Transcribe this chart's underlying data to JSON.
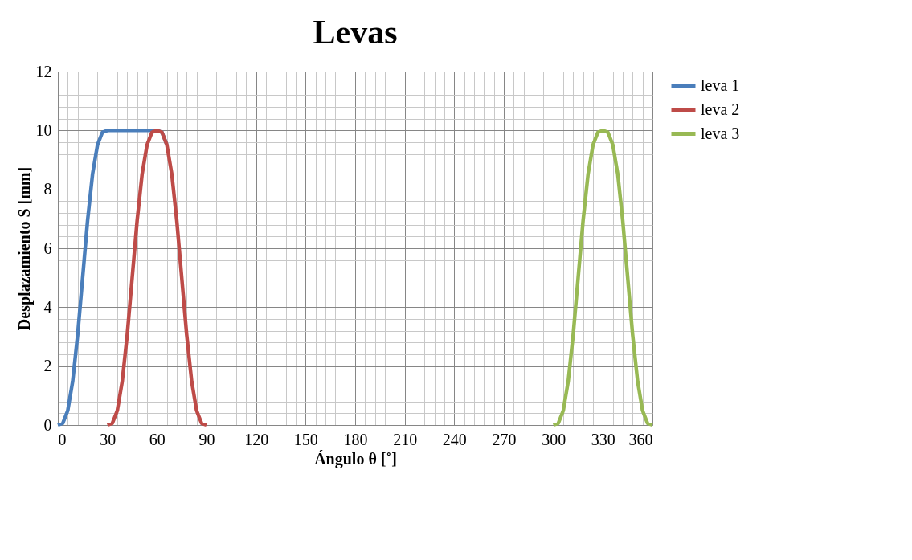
{
  "chart_data": {
    "type": "line",
    "title": "Levas",
    "xlabel": "Ángulo θ  [˚]",
    "ylabel": "Desplazamiento S [mm]",
    "xlim": [
      0,
      360
    ],
    "xticks": [
      0,
      30,
      60,
      90,
      120,
      150,
      180,
      210,
      240,
      270,
      300,
      330,
      360
    ],
    "ylim": [
      0,
      12
    ],
    "yticks": [
      0,
      2,
      4,
      6,
      8,
      10,
      12
    ],
    "grid": true,
    "legend": "right",
    "marker": "none",
    "line_style": "solid",
    "series": [
      {
        "name": "leva 1",
        "color": "#4a7ebb",
        "x": [
          0,
          3,
          6,
          9,
          12,
          15,
          18,
          21,
          24,
          27,
          30,
          60,
          63,
          66
        ],
        "values": [
          0,
          0.06,
          0.49,
          1.49,
          3.06,
          5,
          6.94,
          8.51,
          9.51,
          9.94,
          10,
          10,
          9.94,
          9.51
        ]
      },
      {
        "name": "leva 2",
        "color": "#be4b48",
        "x": [
          30,
          33,
          36,
          39,
          42,
          45,
          48,
          51,
          54,
          57,
          60,
          63,
          66,
          69,
          72,
          75,
          78,
          81,
          84,
          87,
          90
        ],
        "values": [
          0,
          0.06,
          0.49,
          1.49,
          3.06,
          5,
          6.94,
          8.51,
          9.51,
          9.94,
          10,
          9.94,
          9.51,
          8.51,
          6.94,
          5,
          3.06,
          1.49,
          0.49,
          0.06,
          0
        ]
      },
      {
        "name": "leva 3",
        "color": "#98b954",
        "x": [
          300,
          303,
          306,
          309,
          312,
          315,
          318,
          321,
          324,
          327,
          330,
          333,
          336,
          339,
          342,
          345,
          348,
          351,
          354,
          357,
          360
        ],
        "values": [
          0,
          0.06,
          0.49,
          1.49,
          3.06,
          5,
          6.94,
          8.51,
          9.51,
          9.94,
          10,
          9.94,
          9.51,
          8.51,
          6.94,
          5,
          3.06,
          1.49,
          0.49,
          0.06,
          0
        ]
      }
    ]
  }
}
